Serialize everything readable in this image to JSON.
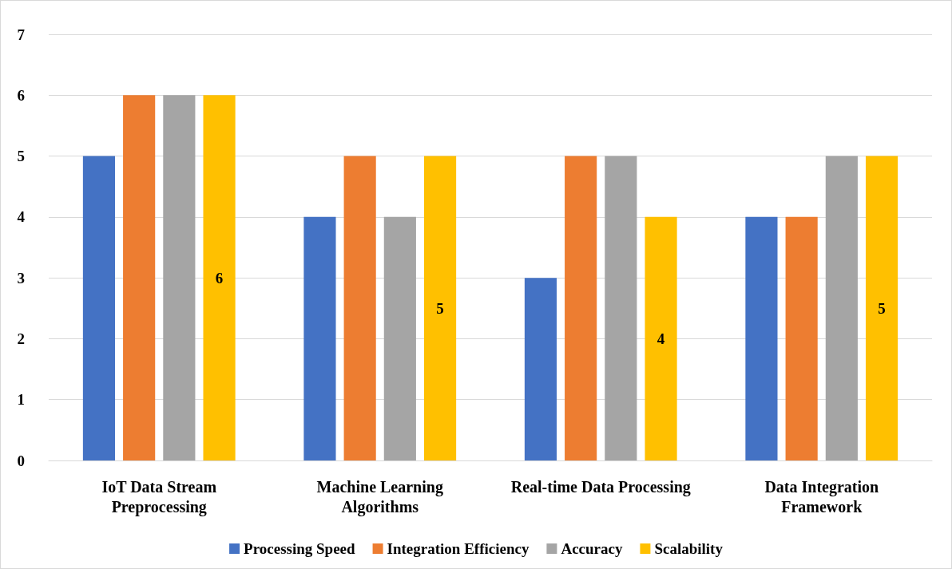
{
  "chart_data": {
    "type": "bar",
    "categories": [
      "IoT Data Stream\nPreprocessing",
      "Machine Learning\nAlgorithms",
      "Real-time Data Processing",
      "Data Integration\nFramework"
    ],
    "series": [
      {
        "name": "Processing Speed",
        "color": "#4472c4",
        "values": [
          5,
          4,
          3,
          4
        ]
      },
      {
        "name": "Integration Efficiency",
        "color": "#ed7d31",
        "values": [
          6,
          5,
          5,
          4
        ]
      },
      {
        "name": "Accuracy",
        "color": "#a5a5a5",
        "values": [
          6,
          4,
          5,
          5
        ]
      },
      {
        "name": "Scalability",
        "color": "#ffc000",
        "values": [
          6,
          5,
          4,
          5
        ],
        "value_labels": [
          "6",
          "5",
          "4",
          "5"
        ]
      }
    ],
    "ylim": [
      0,
      7
    ],
    "yticks": [
      0,
      1,
      2,
      3,
      4,
      5,
      6,
      7
    ],
    "grid": "y",
    "legend": "bottom"
  }
}
